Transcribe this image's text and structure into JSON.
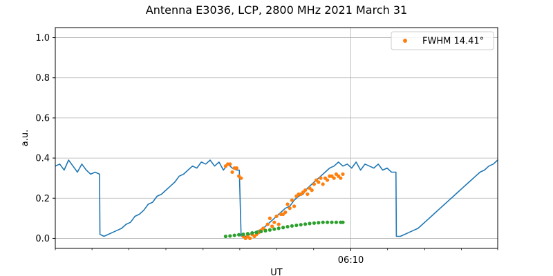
{
  "chart_data": {
    "type": "line",
    "title": "Antenna E3036, LCP, 2800 MHz 2021 March 31",
    "xlabel": "UT",
    "ylabel": "a.u.",
    "xlim": [
      0,
      100
    ],
    "ylim": [
      -0.05,
      1.05
    ],
    "yticks": [
      0.0,
      0.2,
      0.4,
      0.6,
      0.8,
      1.0
    ],
    "ytick_labels": [
      "0.0",
      "0.2",
      "0.4",
      "0.6",
      "0.8",
      "1.0"
    ],
    "xticks_major": [
      {
        "x": 66.8,
        "label": "06:10"
      }
    ],
    "xticks_minor": [
      0,
      8.3,
      16.6,
      25,
      33.4,
      41.7,
      50,
      58.4,
      75.1,
      83.5,
      91.8,
      100
    ],
    "grid": true,
    "legend": {
      "position": "top-right",
      "entries": [
        {
          "label": "FWHM 14.41$^\\circ$",
          "display": "FWHM 14.41°",
          "color": "#ff7f0e",
          "marker": "dot"
        }
      ]
    },
    "colors": {
      "blue": "#1f77b4",
      "orange": "#ff7f0e",
      "green": "#2ca02c"
    },
    "series": [
      {
        "name": "",
        "style": "line",
        "color": "#1f77b4",
        "x": [
          0,
          1,
          2,
          3,
          4,
          5,
          6,
          7,
          8,
          9,
          10,
          10.1,
          11,
          12,
          13,
          14,
          15,
          16,
          17,
          18,
          19,
          20,
          21,
          22,
          23,
          24,
          25,
          26,
          27,
          28,
          29,
          30,
          31,
          32,
          33,
          34,
          35,
          36,
          37,
          38,
          39,
          40,
          41,
          41.6,
          42,
          43,
          44,
          45,
          46,
          47,
          48,
          49,
          50,
          51,
          52,
          53,
          54,
          55,
          56,
          57,
          58,
          59,
          60,
          61,
          62,
          63,
          64,
          65,
          66,
          67,
          68,
          69,
          70,
          71,
          72,
          73,
          74,
          75,
          76,
          77,
          77.1,
          78,
          79,
          80,
          81,
          82,
          83,
          84,
          85,
          86,
          87,
          88,
          89,
          90,
          91,
          92,
          93,
          94,
          95,
          96,
          97,
          98,
          99,
          100
        ],
        "y": [
          0.36,
          0.37,
          0.34,
          0.39,
          0.36,
          0.33,
          0.37,
          0.34,
          0.32,
          0.33,
          0.32,
          0.02,
          0.01,
          0.02,
          0.03,
          0.04,
          0.05,
          0.07,
          0.08,
          0.11,
          0.12,
          0.14,
          0.17,
          0.18,
          0.21,
          0.22,
          0.24,
          0.26,
          0.28,
          0.31,
          0.32,
          0.34,
          0.36,
          0.35,
          0.38,
          0.37,
          0.39,
          0.36,
          0.38,
          0.34,
          0.37,
          0.35,
          0.34,
          0.34,
          0.01,
          0.01,
          0.02,
          0.03,
          0.04,
          0.05,
          0.07,
          0.09,
          0.11,
          0.13,
          0.15,
          0.16,
          0.19,
          0.21,
          0.22,
          0.25,
          0.27,
          0.29,
          0.31,
          0.33,
          0.35,
          0.36,
          0.38,
          0.36,
          0.37,
          0.35,
          0.38,
          0.34,
          0.37,
          0.36,
          0.35,
          0.37,
          0.34,
          0.35,
          0.33,
          0.33,
          0.01,
          0.01,
          0.02,
          0.03,
          0.04,
          0.05,
          0.07,
          0.09,
          0.11,
          0.13,
          0.15,
          0.17,
          0.19,
          0.21,
          0.23,
          0.25,
          0.27,
          0.29,
          0.31,
          0.33,
          0.34,
          0.36,
          0.37,
          0.39
        ]
      },
      {
        "name": "FWHM 14.41$^\\circ$",
        "style": "scatter",
        "color": "#ff7f0e",
        "x": [
          38.5,
          39,
          39.5,
          40,
          40.5,
          41,
          41.5,
          42,
          42.5,
          43,
          43.5,
          44,
          44.5,
          45,
          45.5,
          46,
          46.5,
          47,
          47.5,
          48,
          48.5,
          49,
          49.5,
          50,
          50.5,
          51,
          51.5,
          52,
          52.5,
          53,
          53.5,
          54,
          54.5,
          55,
          55.5,
          56,
          56.5,
          57,
          57.5,
          58,
          58.5,
          59,
          59.5,
          60,
          60.5,
          61,
          61.5,
          62,
          62.5,
          63,
          63.5,
          64,
          64.5,
          65
        ],
        "y": [
          0.36,
          0.37,
          0.37,
          0.33,
          0.35,
          0.35,
          0.31,
          0.3,
          0.01,
          0.0,
          0.01,
          0.0,
          0.02,
          0.01,
          0.02,
          0.03,
          0.04,
          0.05,
          0.04,
          0.07,
          0.1,
          0.06,
          0.08,
          0.11,
          0.07,
          0.12,
          0.12,
          0.13,
          0.17,
          0.15,
          0.19,
          0.16,
          0.21,
          0.22,
          0.22,
          0.23,
          0.24,
          0.22,
          0.25,
          0.24,
          0.27,
          0.29,
          0.28,
          0.3,
          0.27,
          0.3,
          0.29,
          0.31,
          0.31,
          0.3,
          0.32,
          0.31,
          0.3,
          0.32
        ]
      },
      {
        "name": "",
        "style": "scatter",
        "color": "#2ca02c",
        "x": [
          38.5,
          39.5,
          40.5,
          41.5,
          42.5,
          43.5,
          44.5,
          45.5,
          46.5,
          47.5,
          48.5,
          49.5,
          50.5,
          51.5,
          52.5,
          53.5,
          54.5,
          55.5,
          56.5,
          57.5,
          58.5,
          59.5,
          60.5,
          61.5,
          62.5,
          63.5,
          64.5,
          65
        ],
        "y": [
          0.01,
          0.012,
          0.015,
          0.018,
          0.02,
          0.023,
          0.027,
          0.03,
          0.034,
          0.038,
          0.042,
          0.046,
          0.05,
          0.054,
          0.058,
          0.062,
          0.065,
          0.068,
          0.071,
          0.074,
          0.076,
          0.078,
          0.08,
          0.08,
          0.08,
          0.08,
          0.08,
          0.08
        ]
      }
    ]
  }
}
